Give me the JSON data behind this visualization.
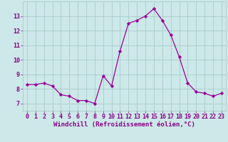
{
  "x": [
    0,
    1,
    2,
    3,
    4,
    5,
    6,
    7,
    8,
    9,
    10,
    11,
    12,
    13,
    14,
    15,
    16,
    17,
    18,
    19,
    20,
    21,
    22,
    23
  ],
  "y": [
    8.3,
    8.3,
    8.4,
    8.2,
    7.6,
    7.5,
    7.2,
    7.2,
    7.0,
    8.9,
    8.2,
    10.6,
    12.5,
    12.7,
    13.0,
    13.5,
    12.7,
    11.7,
    10.2,
    8.4,
    7.8,
    7.7,
    7.5,
    7.7
  ],
  "line_color": "#990099",
  "marker": "D",
  "marker_size": 2.2,
  "bg_color": "#cce8e8",
  "grid_color": "#aacccc",
  "tick_label_color": "#880088",
  "axis_label_color": "#880088",
  "xlabel": "Windchill (Refroidissement éolien,°C)",
  "ylim": [
    6.5,
    14.0
  ],
  "xlim": [
    -0.5,
    23.5
  ],
  "yticks": [
    7,
    8,
    9,
    10,
    11,
    12,
    13
  ],
  "xticks": [
    0,
    1,
    2,
    3,
    4,
    5,
    6,
    7,
    8,
    9,
    10,
    11,
    12,
    13,
    14,
    15,
    16,
    17,
    18,
    19,
    20,
    21,
    22,
    23
  ],
  "xlabel_fontsize": 6.5,
  "tick_fontsize": 6.0,
  "linewidth": 0.9
}
